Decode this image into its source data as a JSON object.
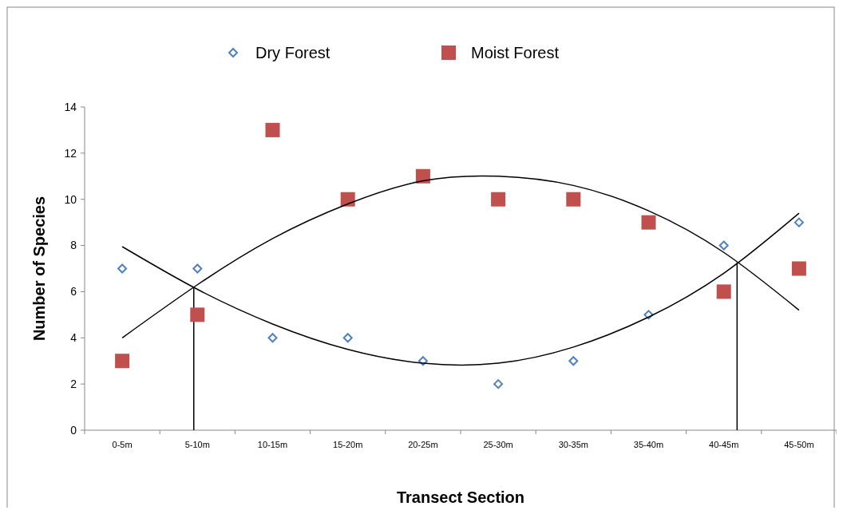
{
  "chart_data": {
    "type": "scatter",
    "xlabel": "Transect Section",
    "ylabel": "Number of Species",
    "categories": [
      "0-5m",
      "5-10m",
      "10-15m",
      "15-20m",
      "20-25m",
      "25-30m",
      "30-35m",
      "35-40m",
      "40-45m",
      "45-50m"
    ],
    "series": [
      {
        "name": "Dry Forest",
        "color": "#4f81bd",
        "marker": "diamond",
        "values": [
          7,
          7,
          4,
          4,
          3,
          2,
          3,
          5,
          8,
          9
        ]
      },
      {
        "name": "Moist Forest",
        "color": "#c0504d",
        "marker": "square",
        "values": [
          3,
          5,
          13,
          10,
          11,
          10,
          10,
          9,
          6,
          7
        ]
      },
      {
        "type": "line",
        "color": "#000000",
        "marker": "none",
        "values": [
          7.95,
          6.1,
          4.6,
          3.5,
          2.9,
          2.9,
          3.6,
          4.9,
          6.8,
          9.4
        ]
      },
      {
        "type": "line",
        "color": "#000000",
        "marker": "none",
        "values": [
          4.0,
          6.3,
          8.3,
          9.8,
          10.8,
          11.0,
          10.6,
          9.5,
          7.7,
          5.2
        ]
      }
    ],
    "ylim": [
      0,
      14
    ],
    "yticks": [
      0,
      2,
      4,
      6,
      8,
      10,
      12,
      14
    ],
    "grid": false,
    "legend": "top"
  }
}
